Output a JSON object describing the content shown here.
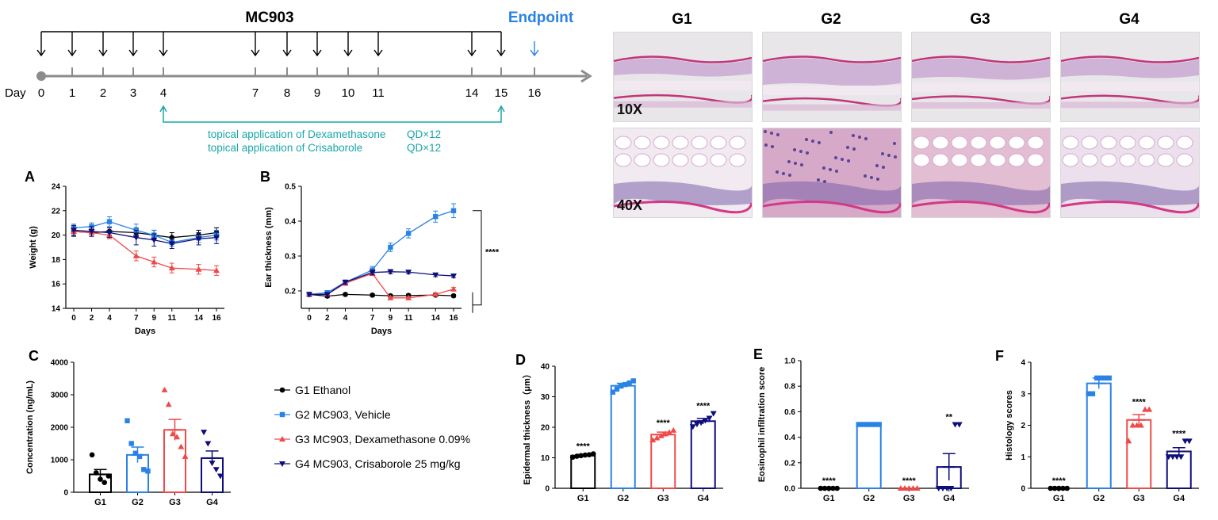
{
  "colors": {
    "g1": "#000000",
    "g2": "#2a82e4",
    "g3": "#ef4a4a",
    "g4": "#0e0e7a",
    "treat": "#1aa6a6",
    "endpoint": "#2a82e4",
    "axis": "#8c8c8c"
  },
  "timeline": {
    "agent": "MC903",
    "endpoint": "Endpoint",
    "day_label": "Day",
    "days": [
      "0",
      "1",
      "2",
      "3",
      "4",
      "7",
      "8",
      "9",
      "10",
      "11",
      "14",
      "15",
      "16"
    ],
    "treatment_lines": [
      {
        "text": "topical application of Dexamethasone",
        "dose": "QD×12"
      },
      {
        "text": "topical application of Crisaborole",
        "dose": "QD×12"
      }
    ]
  },
  "histology": {
    "groups": [
      "G1",
      "G2",
      "G3",
      "G4"
    ],
    "rows": [
      "10X",
      "40X"
    ]
  },
  "legend": [
    {
      "label": "G1 Ethanol"
    },
    {
      "label": "G2 MC903, Vehicle"
    },
    {
      "label": "G3 MC903, Dexamethasone 0.09%"
    },
    {
      "label": "G4 MC903, Crisaborole 25 mg/kg"
    }
  ],
  "chart_data": [
    {
      "panel": "A",
      "type": "line",
      "xlabel": "Days",
      "ylabel": "Weight (g)",
      "x": [
        0,
        2,
        4,
        7,
        9,
        11,
        14,
        16
      ],
      "xticks": [
        "0",
        "2",
        "4",
        "7",
        "9",
        "11",
        "14",
        "16"
      ],
      "ylim": [
        14,
        24
      ],
      "yticks": [
        "14",
        "16",
        "18",
        "20",
        "22",
        "24"
      ],
      "series": [
        {
          "name": "G1",
          "values": [
            20.3,
            20.2,
            20.3,
            20.2,
            20.0,
            19.8,
            20.0,
            20.2
          ],
          "err": [
            0.4,
            0.3,
            0.3,
            0.4,
            0.4,
            0.4,
            0.4,
            0.4
          ]
        },
        {
          "name": "G2",
          "values": [
            20.6,
            20.7,
            21.1,
            20.4,
            20.0,
            19.4,
            19.8,
            20.0
          ],
          "err": [
            0.3,
            0.3,
            0.4,
            0.5,
            0.4,
            0.3,
            0.4,
            0.4
          ]
        },
        {
          "name": "G3",
          "values": [
            20.3,
            20.2,
            20.0,
            18.3,
            17.8,
            17.3,
            17.2,
            17.1
          ],
          "err": [
            0.3,
            0.3,
            0.3,
            0.4,
            0.4,
            0.4,
            0.4,
            0.4
          ]
        },
        {
          "name": "G4",
          "values": [
            20.4,
            20.3,
            20.2,
            19.8,
            19.6,
            19.3,
            19.7,
            19.8
          ],
          "err": [
            0.4,
            0.4,
            0.4,
            0.6,
            0.5,
            0.4,
            0.5,
            0.5
          ]
        }
      ]
    },
    {
      "panel": "B",
      "type": "line",
      "xlabel": "Days",
      "ylabel": "Ear thickness (mm)",
      "x": [
        0,
        2,
        4,
        7,
        9,
        11,
        14,
        16
      ],
      "xticks": [
        "0",
        "2",
        "4",
        "7",
        "9",
        "11",
        "14",
        "16"
      ],
      "ylim": [
        0.15,
        0.5
      ],
      "yticks": [
        "0.2",
        "0.3",
        "0.4",
        "0.5"
      ],
      "significance": "****",
      "series": [
        {
          "name": "G1",
          "values": [
            0.19,
            0.185,
            0.19,
            0.188,
            0.186,
            0.187,
            0.188,
            0.186
          ],
          "err": [
            0.004,
            0.004,
            0.004,
            0.004,
            0.004,
            0.004,
            0.004,
            0.004
          ]
        },
        {
          "name": "G2",
          "values": [
            0.19,
            0.195,
            0.225,
            0.26,
            0.325,
            0.365,
            0.413,
            0.43
          ],
          "err": [
            0.005,
            0.005,
            0.006,
            0.01,
            0.012,
            0.013,
            0.016,
            0.02
          ]
        },
        {
          "name": "G3",
          "values": [
            0.19,
            0.19,
            0.222,
            0.25,
            0.18,
            0.18,
            0.19,
            0.205
          ],
          "err": [
            0.005,
            0.005,
            0.006,
            0.006,
            0.004,
            0.004,
            0.005,
            0.005
          ]
        },
        {
          "name": "G4",
          "values": [
            0.19,
            0.19,
            0.225,
            0.253,
            0.255,
            0.254,
            0.246,
            0.243
          ],
          "err": [
            0.005,
            0.005,
            0.006,
            0.007,
            0.006,
            0.005,
            0.005,
            0.005
          ]
        }
      ]
    },
    {
      "panel": "C",
      "type": "bar",
      "ylabel": "Concentration (ng/mL)",
      "categories": [
        "G1",
        "G2",
        "G3",
        "G4"
      ],
      "ylim": [
        0,
        4000
      ],
      "yticks": [
        "0",
        "1000",
        "2000",
        "3000",
        "4000"
      ],
      "values": [
        550,
        1150,
        1920,
        1050
      ],
      "err": [
        150,
        240,
        320,
        220
      ],
      "points": [
        [
          1150,
          600,
          400,
          300,
          500
        ],
        [
          2200,
          1500,
          1200,
          1100,
          700,
          650
        ],
        [
          3150,
          2700,
          1800,
          1700,
          1400,
          1100
        ],
        [
          1850,
          1500,
          900,
          700,
          500
        ]
      ],
      "significance": [
        "",
        "",
        "",
        ""
      ]
    },
    {
      "panel": "D",
      "type": "bar",
      "ylabel": "Epidermal thickness（μm）",
      "categories": [
        "G1",
        "G2",
        "G3",
        "G4"
      ],
      "ylim": [
        0,
        40
      ],
      "yticks": [
        "0",
        "10",
        "20",
        "30",
        "40"
      ],
      "values": [
        10.7,
        33.6,
        17.6,
        22.0
      ],
      "err": [
        0.4,
        0.8,
        0.8,
        0.9
      ],
      "points": [
        [
          10.2,
          10.5,
          10.7,
          10.9,
          11.0,
          11.3
        ],
        [
          31.5,
          32.5,
          33.5,
          34.0,
          34.5,
          35.2
        ],
        [
          15.8,
          16.5,
          17.2,
          17.8,
          18.3,
          19.0
        ],
        [
          20.2,
          21.0,
          21.5,
          22.2,
          23.0,
          24.5
        ]
      ],
      "significance": [
        "****",
        "",
        "****",
        "****"
      ]
    },
    {
      "panel": "E",
      "type": "bar",
      "ylabel": "Eosinophil infiltration score",
      "categories": [
        "G1",
        "G2",
        "G3",
        "G4"
      ],
      "ylim": [
        0,
        1.0
      ],
      "yticks": [
        "0.0",
        "0.2",
        "0.4",
        "0.6",
        "0.8",
        "1.0"
      ],
      "values": [
        0.0,
        0.5,
        0.0,
        0.167
      ],
      "err": [
        0,
        0,
        0,
        0.105
      ],
      "points": [
        [
          0,
          0,
          0,
          0,
          0
        ],
        [
          0.5,
          0.5,
          0.5,
          0.5,
          0.5,
          0.5
        ],
        [
          0,
          0,
          0,
          0,
          0
        ],
        [
          0,
          0,
          0,
          0,
          0.5,
          0.5
        ]
      ],
      "significance": [
        "****",
        "",
        "****",
        "**"
      ]
    },
    {
      "panel": "F",
      "type": "bar",
      "ylabel": "Histology scores",
      "categories": [
        "G1",
        "G2",
        "G3",
        "G4"
      ],
      "ylim": [
        0,
        4
      ],
      "yticks": [
        "0",
        "1",
        "2",
        "3",
        "4"
      ],
      "values": [
        0.0,
        3.33,
        2.17,
        1.17
      ],
      "err": [
        0,
        0.17,
        0.17,
        0.12
      ],
      "points": [
        [
          0,
          0,
          0,
          0,
          0
        ],
        [
          3,
          3,
          3.5,
          3.5,
          3.5,
          3.5
        ],
        [
          1.5,
          2,
          2,
          2,
          2.5,
          2.5
        ],
        [
          1,
          1,
          1,
          1,
          1.5,
          1.5
        ]
      ],
      "significance": [
        "****",
        "",
        "****",
        "****"
      ]
    }
  ]
}
